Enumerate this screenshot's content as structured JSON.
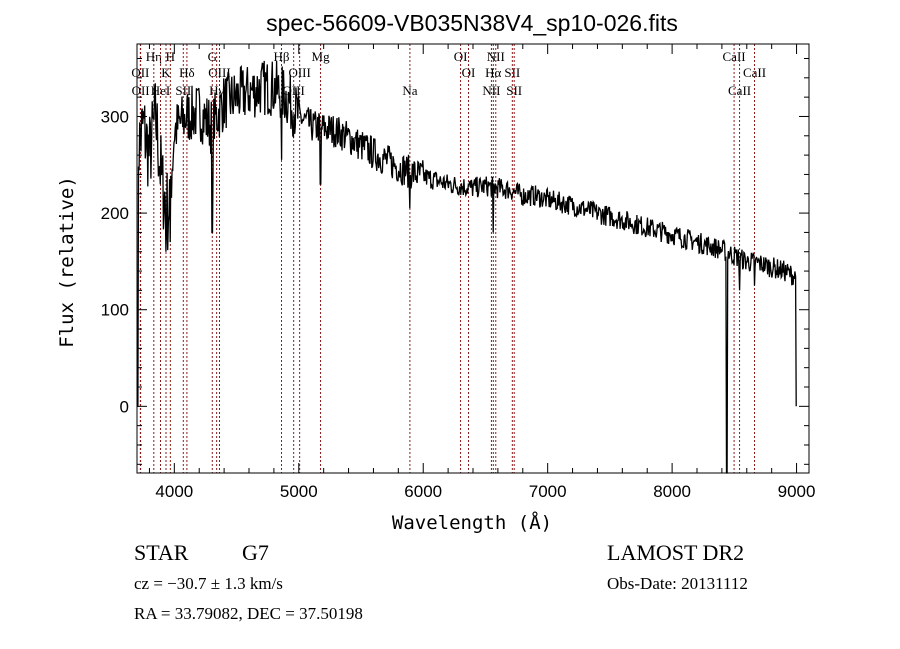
{
  "chart_data": {
    "type": "line",
    "title": "spec-56609-VB035N38V4_sp10-026.fits",
    "xlabel": "Wavelength (Å)",
    "ylabel": "Flux (relative)",
    "xlim": [
      3700,
      9100
    ],
    "ylim": [
      -69,
      375
    ],
    "xticks": [
      4000,
      5000,
      6000,
      7000,
      8000,
      9000
    ],
    "yticks": [
      0,
      100,
      200,
      300
    ],
    "grid": false,
    "series": [
      {
        "name": "flux",
        "x": [
          3700,
          3750,
          3800,
          3850,
          3900,
          3950,
          4000,
          4100,
          4200,
          4300,
          4400,
          4500,
          4600,
          4700,
          4800,
          4900,
          5000,
          5100,
          5200,
          5300,
          5400,
          5500,
          5600,
          5700,
          5800,
          5900,
          6000,
          6100,
          6200,
          6300,
          6400,
          6500,
          6600,
          6700,
          6800,
          6900,
          7000,
          7200,
          7400,
          7600,
          7800,
          8000,
          8200,
          8400,
          8500,
          8600,
          8700,
          8800,
          8900,
          9000
        ],
        "y": [
          260,
          290,
          260,
          300,
          230,
          200,
          285,
          300,
          305,
          290,
          315,
          320,
          325,
          330,
          330,
          320,
          300,
          290,
          288,
          285,
          278,
          270,
          262,
          255,
          248,
          242,
          238,
          234,
          230,
          228,
          226,
          228,
          226,
          224,
          218,
          218,
          214,
          208,
          200,
          193,
          185,
          178,
          170,
          162,
          156,
          150,
          148,
          144,
          140,
          134
        ]
      }
    ],
    "absorption_features": [
      {
        "wavelength": 3705,
        "value": 0
      },
      {
        "wavelength": 3933,
        "value": 160
      },
      {
        "wavelength": 3968,
        "value": 170
      },
      {
        "wavelength": 4305,
        "value": 180
      },
      {
        "wavelength": 4861,
        "value": 255
      },
      {
        "wavelength": 5175,
        "value": 230
      },
      {
        "wavelength": 5893,
        "value": 205
      },
      {
        "wavelength": 6563,
        "value": 180
      },
      {
        "wavelength": 8440,
        "value": -69
      },
      {
        "wavelength": 8542,
        "value": 120
      },
      {
        "wavelength": 8662,
        "value": 125
      },
      {
        "wavelength": 9000,
        "value": 0
      }
    ],
    "line_markers": [
      {
        "label": "Hη",
        "wavelength": 3835,
        "row": 1
      },
      {
        "label": "H",
        "wavelength": 3968,
        "row": 1
      },
      {
        "label": "G",
        "wavelength": 4305,
        "row": 1
      },
      {
        "label": "Hβ",
        "wavelength": 4861,
        "row": 1
      },
      {
        "label": "Mg",
        "wavelength": 5175,
        "row": 1
      },
      {
        "label": "OI",
        "wavelength": 6300,
        "row": 1
      },
      {
        "label": "NII",
        "wavelength": 6583,
        "row": 1
      },
      {
        "label": "CaII",
        "wavelength": 8498,
        "row": 1
      },
      {
        "label": "OII",
        "wavelength": 3727,
        "row": 2
      },
      {
        "label": "K",
        "wavelength": 3933,
        "row": 2
      },
      {
        "label": "Hδ",
        "wavelength": 4101,
        "row": 2
      },
      {
        "label": "OIII",
        "wavelength": 4363,
        "row": 2
      },
      {
        "label": "OIII",
        "wavelength": 5007,
        "row": 2
      },
      {
        "label": "OI",
        "wavelength": 6364,
        "row": 2
      },
      {
        "label": "Hα",
        "wavelength": 6563,
        "row": 2
      },
      {
        "label": "SII",
        "wavelength": 6716,
        "row": 2
      },
      {
        "label": "CaII",
        "wavelength": 8662,
        "row": 2
      },
      {
        "label": "OII",
        "wavelength": 3729,
        "row": 3
      },
      {
        "label": "HeI",
        "wavelength": 3889,
        "row": 3
      },
      {
        "label": "SII",
        "wavelength": 4072,
        "row": 3
      },
      {
        "label": "Hγ",
        "wavelength": 4340,
        "row": 3
      },
      {
        "label": "OIII",
        "wavelength": 4959,
        "row": 3
      },
      {
        "label": "Na",
        "wavelength": 5893,
        "row": 3
      },
      {
        "label": "NII",
        "wavelength": 6548,
        "row": 3
      },
      {
        "label": "SII",
        "wavelength": 6731,
        "row": 3
      },
      {
        "label": "CaII",
        "wavelength": 8542,
        "row": 3
      }
    ]
  },
  "info": {
    "class": "STAR",
    "subclass": "G7",
    "cz": "cz = −30.7 ± 1.3 km/s",
    "coords": "RA =  33.79082, DEC =  37.50198",
    "survey": "LAMOST DR2",
    "obs_date": "Obs-Date: 20131112"
  },
  "colors": {
    "spectrum": "#000000",
    "marker": "#8b1a1a"
  }
}
